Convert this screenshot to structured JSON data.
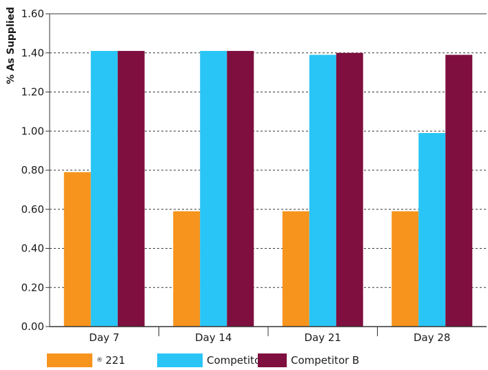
{
  "chart_data": {
    "type": "bar",
    "ylabel": "% As Supplied",
    "xlabel": "",
    "ylim": [
      0,
      1.6
    ],
    "yticks": [
      "0.00",
      "0.20",
      "0.40",
      "0.60",
      "0.80",
      "1.00",
      "1.20",
      "1.40",
      "1.60"
    ],
    "grid": true,
    "legend_position": "bottom",
    "categories": [
      "Day 7",
      "Day 14",
      "Day 21",
      "Day 28"
    ],
    "series": [
      {
        "name": "221",
        "name_prefix": "®",
        "color": "#F7941D",
        "values": [
          0.79,
          0.59,
          0.59,
          0.59
        ]
      },
      {
        "name": "Competitor A",
        "color": "#29C5F6",
        "values": [
          1.41,
          1.41,
          1.39,
          0.99
        ]
      },
      {
        "name": "Competitor B",
        "color": "#7F0F3E",
        "values": [
          1.41,
          1.41,
          1.4,
          1.39
        ]
      }
    ]
  }
}
